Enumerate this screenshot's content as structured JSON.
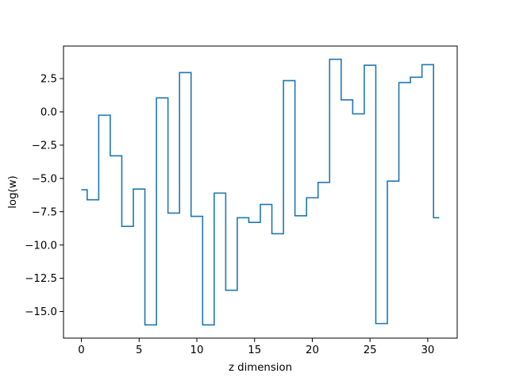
{
  "chart_data": {
    "type": "line",
    "drawstyle": "steps-mid",
    "xlabel": "z dimension",
    "ylabel": "log(w)",
    "x": [
      0,
      1,
      2,
      3,
      4,
      5,
      6,
      7,
      8,
      9,
      10,
      11,
      12,
      13,
      14,
      15,
      16,
      17,
      18,
      19,
      20,
      21,
      22,
      23,
      24,
      25,
      26,
      27,
      28,
      29,
      30,
      31
    ],
    "series": [
      {
        "color": "#1f77b4",
        "values": [
          -5.85,
          -6.6,
          -0.25,
          -3.3,
          -8.6,
          -5.8,
          -16.0,
          1.05,
          -7.6,
          2.95,
          -7.85,
          -16.0,
          -6.1,
          -13.4,
          -7.95,
          -8.3,
          -6.95,
          -9.15,
          2.35,
          -7.8,
          -6.45,
          -5.3,
          3.95,
          0.9,
          -0.15,
          3.5,
          -15.9,
          -5.2,
          2.2,
          2.6,
          3.55,
          -7.95
        ]
      }
    ],
    "xticks": [
      0,
      5,
      10,
      15,
      20,
      25,
      30
    ],
    "yticks": [
      2.5,
      0.0,
      -2.5,
      -5.0,
      -7.5,
      -10.0,
      -12.5,
      -15.0
    ],
    "xtick_labels": [
      "0",
      "5",
      "10",
      "15",
      "20",
      "25",
      "30"
    ],
    "ytick_labels": [
      "2.5",
      "0.0",
      "−2.5",
      "−5.0",
      "−7.5",
      "−10.0",
      "−12.5",
      "−15.0"
    ],
    "xlim": [
      -1.55,
      32.55
    ],
    "ylim": [
      -16.995,
      4.945
    ],
    "grid": false,
    "legend": "none"
  }
}
